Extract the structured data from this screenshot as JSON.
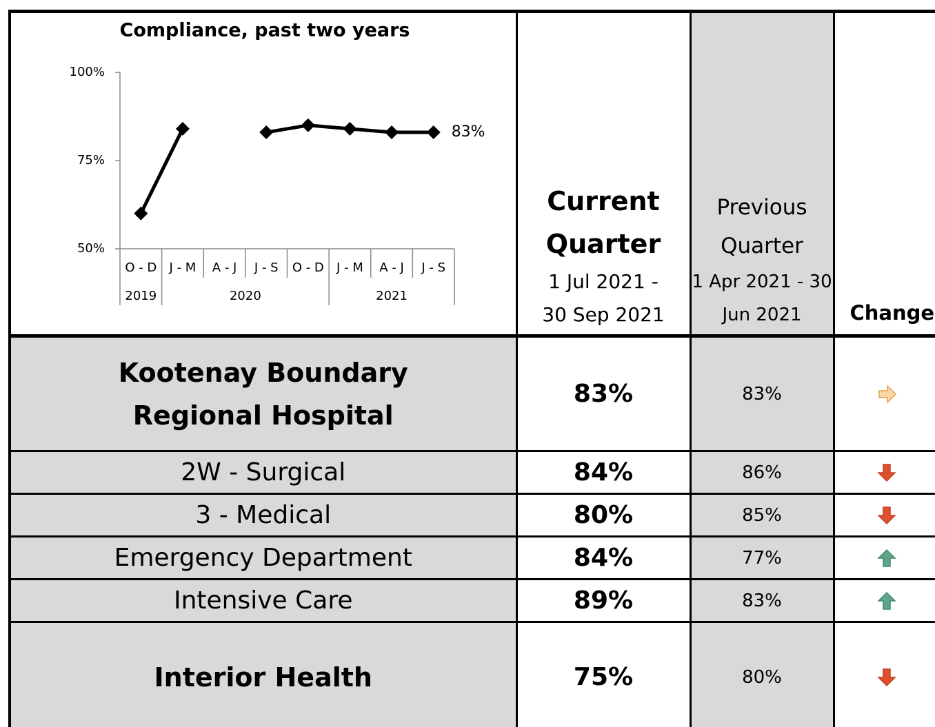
{
  "chart_data": {
    "type": "line",
    "title": "Compliance, past two years",
    "categories": [
      "O - D",
      "J - M",
      "A - J",
      "J - S",
      "O - D",
      "J - M",
      "A - J",
      "J - S"
    ],
    "year_groups": [
      {
        "label": "2019",
        "count": 1
      },
      {
        "label": "2020",
        "count": 4
      },
      {
        "label": "2021",
        "count": 3
      }
    ],
    "series": [
      {
        "name": "Compliance",
        "color": "#000000",
        "values": [
          60,
          84,
          null,
          83,
          85,
          84,
          83,
          83
        ],
        "value_labels": [
          null,
          null,
          null,
          null,
          null,
          null,
          null,
          "83%"
        ]
      }
    ],
    "ylim": [
      50,
      100
    ],
    "yticks": [
      {
        "value": 50,
        "label": "50%"
      },
      {
        "value": 75,
        "label": "75%"
      },
      {
        "value": 100,
        "label": "100%"
      }
    ]
  },
  "table": {
    "header": {
      "current": "Current Quarter",
      "current_dates": "1 Jul 2021 - 30 Sep 2021",
      "previous": "Previous Quarter",
      "previous_dates": "1 Apr 2021 - 30 Jun 2021",
      "change": "Change"
    },
    "rows": [
      {
        "name": "Kootenay Boundary Regional Hospital",
        "current": "83%",
        "previous": "83%",
        "change": "right"
      },
      {
        "name": "2W - Surgical",
        "current": "84%",
        "previous": "86%",
        "change": "down"
      },
      {
        "name": "3 - Medical",
        "current": "80%",
        "previous": "85%",
        "change": "down"
      },
      {
        "name": "Emergency Department",
        "current": "84%",
        "previous": "77%",
        "change": "up"
      },
      {
        "name": "Intensive Care",
        "current": "89%",
        "previous": "83%",
        "change": "up"
      },
      {
        "name": "Interior Health",
        "current": "75%",
        "previous": "80%",
        "change": "down"
      }
    ]
  }
}
